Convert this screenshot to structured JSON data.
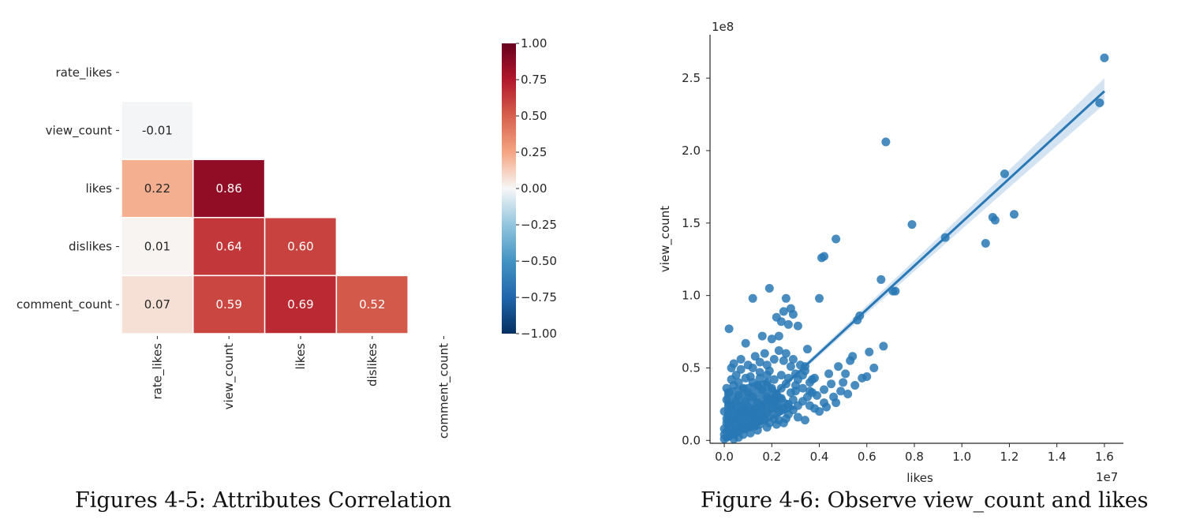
{
  "captions": {
    "left": "Figures 4-5: Attributes Correlation",
    "right": "Figure 4-6: Observe view_count and likes"
  },
  "colors": {
    "scatter": "#2878b5",
    "band": "#c5daee",
    "grid_line": "#ffffff"
  },
  "chart_data": [
    {
      "type": "heatmap",
      "rows": [
        "rate_likes",
        "view_count",
        "likes",
        "dislikes",
        "comment_count"
      ],
      "cols": [
        "rate_likes",
        "view_count",
        "likes",
        "dislikes",
        "comment_count"
      ],
      "mask": "upper-triangle-and-diagonal",
      "cells": [
        {
          "row": 1,
          "col": 0,
          "value": -0.01,
          "label": "-0.01"
        },
        {
          "row": 2,
          "col": 0,
          "value": 0.22,
          "label": "0.22"
        },
        {
          "row": 2,
          "col": 1,
          "value": 0.86,
          "label": "0.86"
        },
        {
          "row": 3,
          "col": 0,
          "value": 0.01,
          "label": "0.01"
        },
        {
          "row": 3,
          "col": 1,
          "value": 0.64,
          "label": "0.64"
        },
        {
          "row": 3,
          "col": 2,
          "value": 0.6,
          "label": "0.60"
        },
        {
          "row": 4,
          "col": 0,
          "value": 0.07,
          "label": "0.07"
        },
        {
          "row": 4,
          "col": 1,
          "value": 0.59,
          "label": "0.59"
        },
        {
          "row": 4,
          "col": 2,
          "value": 0.69,
          "label": "0.69"
        },
        {
          "row": 4,
          "col": 3,
          "value": 0.52,
          "label": "0.52"
        }
      ],
      "colorbar": {
        "range": [
          -1.0,
          1.0
        ],
        "ticks": [
          1.0,
          0.75,
          0.5,
          0.25,
          0.0,
          -0.25,
          -0.5,
          -0.75,
          -1.0
        ],
        "tick_labels": [
          "1.00",
          "0.75",
          "0.50",
          "0.25",
          "0.00",
          "−0.25",
          "−0.50",
          "−0.75",
          "−1.00"
        ],
        "colormap": "RdBu_r"
      }
    },
    {
      "type": "scatter",
      "xlabel": "likes",
      "ylabel": "view_count",
      "x_multiplier": "1e7",
      "y_multiplier": "1e8",
      "xlim": [
        -0.06,
        1.68
      ],
      "ylim": [
        -0.02,
        2.8
      ],
      "xticks": [
        0.0,
        0.2,
        0.4,
        0.6,
        0.8,
        1.0,
        1.2,
        1.4,
        1.6
      ],
      "xtick_labels": [
        "0.0",
        "0.2",
        "0.4",
        "0.6",
        "0.8",
        "1.0",
        "1.2",
        "1.4",
        "1.6"
      ],
      "yticks": [
        0.0,
        0.5,
        1.0,
        1.5,
        2.0,
        2.5
      ],
      "ytick_labels": [
        "0.0",
        "0.5",
        "1.0",
        "1.5",
        "2.0",
        "2.5"
      ],
      "regression": {
        "x0": 0.0,
        "y0": 0.0,
        "x1": 1.6,
        "y1": 2.41,
        "band_width": [
          0.012,
          0.09
        ]
      },
      "points": [
        [
          1.6,
          2.64
        ],
        [
          1.58,
          2.33
        ],
        [
          0.68,
          2.06
        ],
        [
          1.18,
          1.84
        ],
        [
          1.13,
          1.54
        ],
        [
          1.14,
          1.52
        ],
        [
          1.22,
          1.56
        ],
        [
          0.79,
          1.49
        ],
        [
          0.93,
          1.4
        ],
        [
          1.1,
          1.36
        ],
        [
          0.47,
          1.39
        ],
        [
          0.42,
          1.27
        ],
        [
          0.41,
          1.26
        ],
        [
          0.72,
          1.03
        ],
        [
          0.71,
          1.03
        ],
        [
          0.66,
          1.11
        ],
        [
          0.57,
          0.86
        ],
        [
          0.56,
          0.83
        ],
        [
          0.67,
          0.65
        ],
        [
          0.61,
          0.61
        ],
        [
          0.54,
          0.58
        ],
        [
          0.53,
          0.55
        ],
        [
          0.48,
          0.51
        ],
        [
          0.51,
          0.46
        ],
        [
          0.44,
          0.46
        ],
        [
          0.45,
          0.39
        ],
        [
          0.38,
          0.43
        ],
        [
          0.36,
          0.4
        ],
        [
          0.33,
          0.45
        ],
        [
          0.31,
          0.42
        ],
        [
          0.3,
          0.34
        ],
        [
          0.29,
          0.28
        ],
        [
          0.27,
          0.25
        ],
        [
          0.24,
          0.29
        ],
        [
          0.22,
          0.24
        ],
        [
          0.2,
          0.22
        ],
        [
          0.18,
          0.19
        ],
        [
          0.16,
          0.16
        ],
        [
          0.14,
          0.13
        ],
        [
          0.12,
          0.11
        ],
        [
          0.1,
          0.1
        ],
        [
          0.08,
          0.08
        ],
        [
          0.06,
          0.06
        ],
        [
          0.04,
          0.04
        ],
        [
          0.02,
          0.03
        ],
        [
          0.01,
          0.02
        ],
        [
          0.0,
          0.01
        ],
        [
          0.02,
          0.77
        ],
        [
          0.12,
          0.98
        ],
        [
          0.19,
          1.05
        ],
        [
          0.26,
          0.98
        ],
        [
          0.25,
          0.89
        ],
        [
          0.28,
          0.91
        ],
        [
          0.29,
          0.87
        ],
        [
          0.22,
          0.85
        ],
        [
          0.24,
          0.82
        ],
        [
          0.27,
          0.8
        ],
        [
          0.2,
          0.7
        ],
        [
          0.23,
          0.72
        ],
        [
          0.31,
          0.79
        ],
        [
          0.35,
          0.63
        ],
        [
          0.34,
          0.51
        ],
        [
          0.4,
          0.98
        ],
        [
          0.16,
          0.72
        ],
        [
          0.09,
          0.67
        ],
        [
          0.13,
          0.58
        ],
        [
          0.17,
          0.6
        ],
        [
          0.07,
          0.49
        ],
        [
          0.03,
          0.5
        ],
        [
          0.05,
          0.45
        ],
        [
          0.11,
          0.44
        ],
        [
          0.15,
          0.47
        ],
        [
          0.19,
          0.48
        ],
        [
          0.25,
          0.55
        ],
        [
          0.28,
          0.51
        ],
        [
          0.32,
          0.52
        ],
        [
          0.36,
          0.24
        ],
        [
          0.42,
          0.26
        ],
        [
          0.47,
          0.26
        ],
        [
          0.39,
          0.31
        ],
        [
          0.26,
          0.15
        ],
        [
          0.31,
          0.16
        ],
        [
          0.34,
          0.14
        ],
        [
          0.22,
          0.11
        ],
        [
          0.18,
          0.09
        ],
        [
          0.14,
          0.07
        ],
        [
          0.11,
          0.05
        ],
        [
          0.08,
          0.04
        ],
        [
          0.06,
          0.02
        ],
        [
          0.04,
          0.01
        ],
        [
          0.03,
          0.08
        ],
        [
          0.05,
          0.15
        ],
        [
          0.07,
          0.2
        ],
        [
          0.09,
          0.27
        ],
        [
          0.02,
          0.33
        ],
        [
          0.04,
          0.38
        ],
        [
          0.06,
          0.31
        ],
        [
          0.08,
          0.36
        ],
        [
          0.1,
          0.33
        ],
        [
          0.12,
          0.3
        ],
        [
          0.14,
          0.38
        ],
        [
          0.16,
          0.35
        ],
        [
          0.18,
          0.4
        ],
        [
          0.2,
          0.36
        ],
        [
          0.22,
          0.32
        ],
        [
          0.24,
          0.36
        ],
        [
          0.26,
          0.39
        ],
        [
          0.28,
          0.33
        ],
        [
          0.3,
          0.38
        ],
        [
          0.01,
          0.28
        ],
        [
          0.03,
          0.23
        ],
        [
          0.05,
          0.27
        ],
        [
          0.07,
          0.24
        ],
        [
          0.09,
          0.21
        ],
        [
          0.11,
          0.18
        ],
        [
          0.13,
          0.22
        ],
        [
          0.15,
          0.19
        ],
        [
          0.17,
          0.25
        ],
        [
          0.19,
          0.28
        ],
        [
          0.21,
          0.26
        ],
        [
          0.23,
          0.2
        ],
        [
          0.25,
          0.22
        ],
        [
          0.27,
          0.18
        ],
        [
          0.29,
          0.21
        ],
        [
          0.31,
          0.24
        ],
        [
          0.33,
          0.27
        ],
        [
          0.35,
          0.3
        ],
        [
          0.37,
          0.33
        ],
        [
          0.01,
          0.12
        ],
        [
          0.03,
          0.14
        ],
        [
          0.05,
          0.1
        ],
        [
          0.07,
          0.13
        ],
        [
          0.09,
          0.16
        ],
        [
          0.11,
          0.13
        ],
        [
          0.13,
          0.16
        ],
        [
          0.15,
          0.11
        ],
        [
          0.17,
          0.14
        ],
        [
          0.19,
          0.12
        ],
        [
          0.21,
          0.15
        ],
        [
          0.23,
          0.14
        ],
        [
          0.25,
          0.12
        ],
        [
          0.02,
          0.18
        ],
        [
          0.04,
          0.21
        ],
        [
          0.06,
          0.17
        ],
        [
          0.08,
          0.19
        ],
        [
          0.1,
          0.23
        ],
        [
          0.12,
          0.2
        ],
        [
          0.14,
          0.26
        ],
        [
          0.16,
          0.23
        ],
        [
          0.18,
          0.3
        ],
        [
          0.2,
          0.27
        ],
        [
          0.22,
          0.29
        ],
        [
          0.01,
          0.06
        ],
        [
          0.03,
          0.05
        ],
        [
          0.05,
          0.07
        ],
        [
          0.07,
          0.09
        ],
        [
          0.09,
          0.08
        ],
        [
          0.11,
          0.09
        ],
        [
          0.13,
          0.1
        ],
        [
          0.0,
          0.04
        ],
        [
          0.0,
          0.08
        ],
        [
          0.01,
          0.15
        ],
        [
          0.0,
          0.2
        ],
        [
          0.02,
          0.25
        ],
        [
          0.01,
          0.36
        ],
        [
          0.03,
          0.42
        ],
        [
          0.06,
          0.4
        ],
        [
          0.09,
          0.43
        ],
        [
          0.12,
          0.4
        ],
        [
          0.15,
          0.43
        ],
        [
          0.18,
          0.45
        ],
        [
          0.21,
          0.42
        ],
        [
          0.24,
          0.45
        ],
        [
          0.27,
          0.43
        ],
        [
          0.3,
          0.46
        ],
        [
          0.33,
          0.36
        ],
        [
          0.36,
          0.34
        ],
        [
          0.38,
          0.22
        ],
        [
          0.4,
          0.2
        ],
        [
          0.43,
          0.23
        ],
        [
          0.46,
          0.3
        ],
        [
          0.49,
          0.34
        ],
        [
          0.52,
          0.32
        ],
        [
          0.55,
          0.38
        ],
        [
          0.58,
          0.43
        ],
        [
          0.6,
          0.44
        ],
        [
          0.63,
          0.5
        ],
        [
          0.5,
          0.4
        ],
        [
          0.42,
          0.35
        ],
        [
          0.37,
          0.42
        ],
        [
          0.34,
          0.48
        ],
        [
          0.29,
          0.56
        ],
        [
          0.26,
          0.6
        ],
        [
          0.23,
          0.62
        ],
        [
          0.21,
          0.56
        ],
        [
          0.18,
          0.52
        ],
        [
          0.15,
          0.54
        ],
        [
          0.12,
          0.5
        ],
        [
          0.1,
          0.52
        ],
        [
          0.07,
          0.56
        ],
        [
          0.04,
          0.53
        ]
      ]
    }
  ]
}
